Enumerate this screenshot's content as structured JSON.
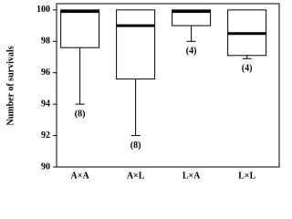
{
  "chart_data": {
    "type": "box",
    "y_label": "Number of survivals",
    "categories": [
      "A×A",
      "A×L",
      "L×A",
      "L×L"
    ],
    "boxes": [
      {
        "min": 94,
        "q1": 97.6,
        "median": 99.9,
        "q3": 100,
        "max": 100
      },
      {
        "min": 92,
        "q1": 95.6,
        "median": 99,
        "q3": 100,
        "max": 100
      },
      {
        "min": 98,
        "q1": 99,
        "median": 99.9,
        "q3": 100,
        "max": 100
      },
      {
        "min": 96.9,
        "q1": 97.1,
        "median": 98.5,
        "q3": 100,
        "max": 100
      }
    ],
    "n_labels": [
      "(8)",
      "(8)",
      "(4)",
      "(4)"
    ],
    "ylim": [
      90,
      100.4
    ],
    "yticks": [
      90,
      92,
      94,
      96,
      98,
      100
    ],
    "color": "#ffffff"
  }
}
